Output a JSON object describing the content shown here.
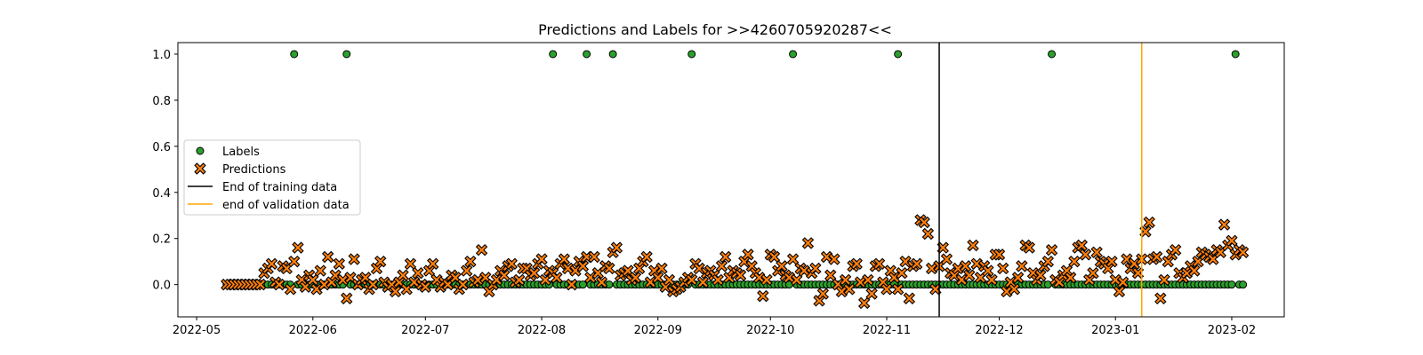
{
  "chart_data": {
    "type": "scatter",
    "title": "Predictions and Labels for >>4260705920287<<",
    "xlabel": "",
    "ylabel": "",
    "x_axis": "date",
    "xlim": [
      "2022-04-26",
      "2023-02-15"
    ],
    "ylim": [
      -0.14,
      1.05
    ],
    "x_ticks": [
      "2022-05-01",
      "2022-06-01",
      "2022-07-01",
      "2022-08-01",
      "2022-09-01",
      "2022-10-01",
      "2022-11-01",
      "2022-12-01",
      "2023-01-01",
      "2023-02-01"
    ],
    "x_tick_labels": [
      "2022-05",
      "2022-06",
      "2022-07",
      "2022-08",
      "2022-09",
      "2022-10",
      "2022-11",
      "2022-12",
      "2023-01",
      "2023-02"
    ],
    "y_ticks": [
      0.0,
      0.2,
      0.4,
      0.6,
      0.8,
      1.0
    ],
    "y_tick_labels": [
      "0.0",
      "0.2",
      "0.4",
      "0.6",
      "0.8",
      "1.0"
    ],
    "grid": false,
    "legend_position": "center-left",
    "series": [
      {
        "name": "Labels",
        "marker": "circle",
        "color": "#2ca02c",
        "edge_color": "#000000",
        "x_start": "2022-05-09",
        "x_end": "2023-02-04",
        "baseline_value": 0.0,
        "positive_dates": [
          "2022-05-27",
          "2022-06-10",
          "2022-08-04",
          "2022-08-13",
          "2022-08-20",
          "2022-09-10",
          "2022-10-07",
          "2022-11-04",
          "2022-12-15",
          "2023-02-02"
        ],
        "positive_value": 1.0
      },
      {
        "name": "Predictions",
        "marker": "x",
        "color": "#ff7f0e",
        "edge_color": "#000000",
        "x_start": "2022-05-09",
        "x_end": "2023-02-03",
        "y": [
          0.0,
          0.0,
          0.0,
          0.0,
          0.0,
          0.0,
          0.0,
          0.0,
          0.0,
          0.0,
          0.05,
          0.07,
          0.09,
          0.01,
          0.0,
          0.08,
          0.07,
          -0.02,
          0.1,
          0.16,
          0.02,
          -0.01,
          0.04,
          0.02,
          -0.02,
          0.06,
          0.0,
          0.12,
          0.01,
          0.04,
          0.09,
          0.02,
          -0.06,
          0.03,
          0.11,
          0.0,
          0.02,
          0.03,
          -0.02,
          0.0,
          0.07,
          0.1,
          0.01,
          -0.01,
          0.0,
          -0.03,
          0.01,
          0.04,
          -0.02,
          0.09,
          0.01,
          0.05,
          0.0,
          -0.01,
          0.06,
          0.09,
          0.02,
          -0.01,
          0.01,
          0.0,
          0.04,
          0.03,
          -0.02,
          0.0,
          0.06,
          0.1,
          0.01,
          0.02,
          0.15,
          0.03,
          -0.03,
          0.0,
          0.02,
          0.06,
          0.04,
          0.08,
          0.09,
          0.01,
          0.02,
          0.07,
          0.07,
          0.04,
          0.05,
          0.09,
          0.11,
          0.02,
          0.06,
          0.05,
          0.03,
          0.09,
          0.11,
          0.07,
          0.0,
          0.06,
          0.1,
          0.08,
          0.12,
          0.03,
          0.12,
          0.05,
          0.01,
          0.08,
          0.07,
          0.14,
          0.16,
          0.04,
          0.05,
          0.06,
          0.02,
          0.03,
          0.07,
          0.1,
          0.12,
          0.01,
          0.06,
          0.03,
          0.07,
          -0.01,
          0.02,
          -0.03,
          -0.02,
          -0.01,
          0.01,
          0.03,
          0.02,
          0.09,
          0.07,
          0.01,
          0.05,
          0.06,
          0.04,
          0.02,
          0.08,
          0.12,
          0.03,
          0.06,
          0.05,
          0.04,
          0.1,
          0.13,
          0.08,
          0.05,
          0.03,
          -0.05,
          0.02,
          0.13,
          0.12,
          0.06,
          0.08,
          0.04,
          0.03,
          0.11,
          0.02,
          0.07,
          0.06,
          0.18,
          0.05,
          0.07,
          -0.07,
          -0.04,
          0.12,
          0.04,
          0.11,
          0.0,
          -0.03,
          0.02,
          -0.02,
          0.08,
          0.09,
          0.01,
          -0.08,
          0.02,
          -0.04,
          0.08,
          0.09,
          0.01,
          -0.02,
          0.06,
          0.03,
          -0.02,
          0.05,
          0.1,
          -0.06,
          0.08,
          0.09,
          0.28,
          0.27,
          0.22,
          0.07,
          -0.02,
          0.08,
          0.16,
          0.11,
          0.05,
          0.04,
          0.07,
          0.02,
          0.08,
          0.04,
          0.17,
          0.09,
          0.03,
          0.08,
          0.06,
          0.02,
          0.13,
          0.13,
          0.07,
          -0.03,
          0.01,
          -0.02,
          0.03,
          0.08,
          0.17,
          0.16,
          0.05,
          0.02,
          0.04,
          0.08,
          0.1,
          0.15,
          0.02,
          0.01,
          0.04,
          0.06,
          0.03,
          0.1,
          0.16,
          0.17,
          0.13,
          0.02,
          0.05,
          0.14,
          0.1,
          0.09,
          0.07,
          0.1,
          0.02,
          -0.03,
          0.01,
          0.11,
          0.07,
          0.09,
          0.05,
          0.11,
          0.23,
          0.27,
          0.11,
          0.12,
          -0.06,
          0.02,
          0.1,
          0.13,
          0.15,
          0.05,
          0.03,
          0.05,
          0.08,
          0.06,
          0.1,
          0.14,
          0.13,
          0.12,
          0.11,
          0.15,
          0.14,
          0.26,
          0.17,
          0.19,
          0.13,
          0.15,
          0.14
        ]
      }
    ],
    "vertical_lines": [
      {
        "name": "End of training data",
        "x": "2022-11-15",
        "color": "#000000"
      },
      {
        "name": "end of validation data",
        "x": "2023-01-08",
        "color": "#ffa500"
      }
    ]
  }
}
